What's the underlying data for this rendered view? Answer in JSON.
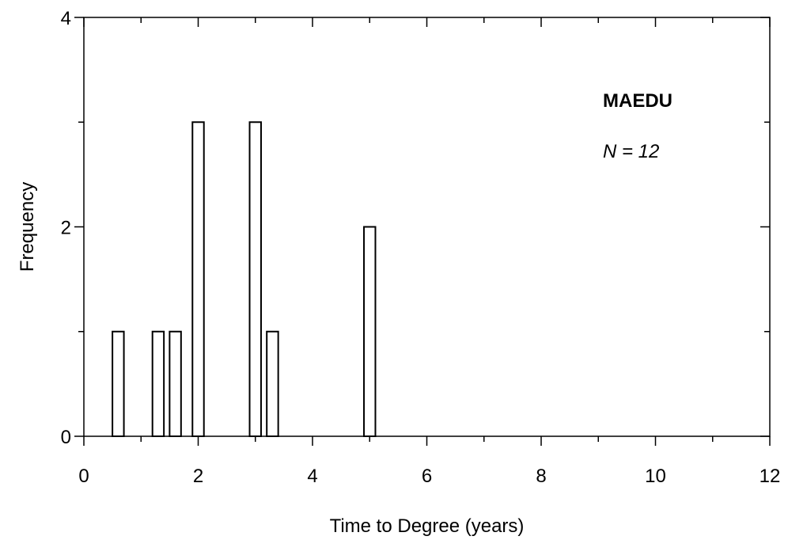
{
  "chart_data": {
    "type": "bar",
    "title": "",
    "xlabel": "Time to Degree (years)",
    "ylabel": "Frequency",
    "xlim": [
      0,
      12
    ],
    "ylim": [
      0,
      4
    ],
    "xticks": [
      0,
      2,
      4,
      6,
      8,
      10,
      12
    ],
    "yticks": [
      0,
      2,
      4
    ],
    "x_minor_step": 1,
    "y_minor_step": 1,
    "bin_width": 0.2,
    "bars": [
      {
        "x": 0.6,
        "value": 1
      },
      {
        "x": 1.3,
        "value": 1
      },
      {
        "x": 1.6,
        "value": 1
      },
      {
        "x": 2.0,
        "value": 3
      },
      {
        "x": 3.0,
        "value": 3
      },
      {
        "x": 3.3,
        "value": 1
      },
      {
        "x": 5.0,
        "value": 2
      }
    ],
    "annotations": {
      "group": "MAEDU",
      "n_label": "N = 12"
    },
    "grid": false,
    "legend": "none",
    "bar_fill": "#ffffff",
    "bar_stroke": "#000000"
  }
}
